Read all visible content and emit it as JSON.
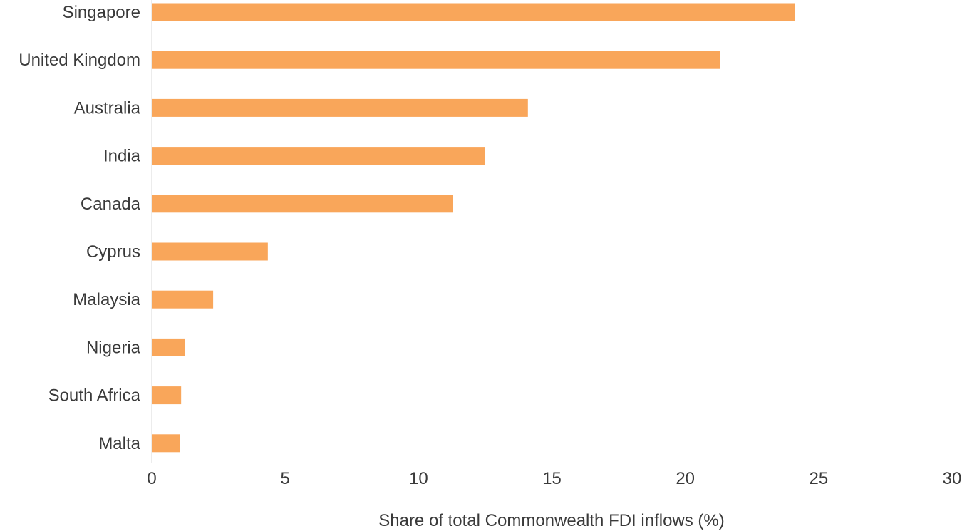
{
  "chart_data": {
    "type": "bar",
    "orientation": "horizontal",
    "categories": [
      "Singapore",
      "United Kingdom",
      "Australia",
      "India",
      "Canada",
      "Cyprus",
      "Malaysia",
      "Nigeria",
      "South Africa",
      "Malta"
    ],
    "values": [
      24.1,
      21.3,
      14.1,
      12.5,
      11.3,
      4.35,
      2.3,
      1.25,
      1.1,
      1.05
    ],
    "xlabel": "Share of total Commonwealth FDI inflows (%)",
    "ylabel": "",
    "title": "",
    "xlim": [
      0,
      30
    ],
    "xticks": [
      "0",
      "5",
      "10",
      "15",
      "20",
      "25",
      "30"
    ],
    "grid": false,
    "legend": "none",
    "bar_color": "#F9A65A"
  }
}
